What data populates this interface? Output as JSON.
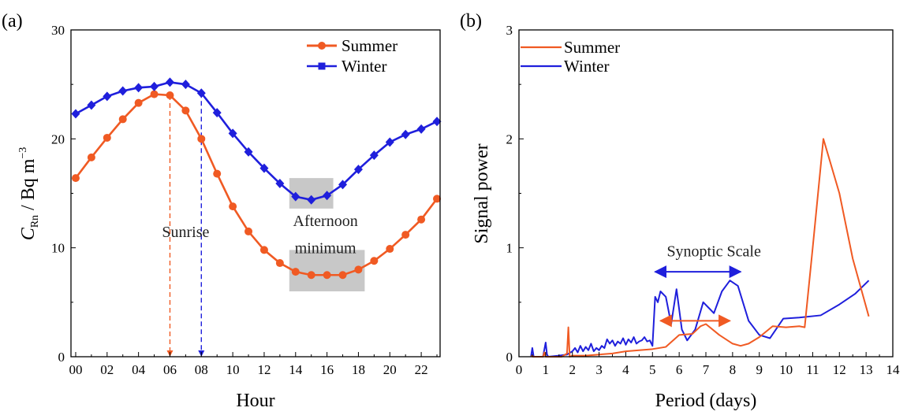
{
  "colors": {
    "summer": "#f05a23",
    "winter": "#1f1fdc",
    "shade": "#c8c8c8",
    "axis": "#000000"
  },
  "chart_data": [
    {
      "panel_label": "(a)",
      "type": "line",
      "title": "",
      "xlabel": "Hour",
      "ylabel_main": "C",
      "ylabel_sub": "Rn",
      "ylabel_rest": " / Bq m",
      "ylabel_sup": "−3",
      "xlim": [
        -0.3,
        23.2
      ],
      "ylim": [
        0,
        30
      ],
      "x_ticks": [
        0,
        2,
        4,
        6,
        8,
        10,
        12,
        14,
        16,
        18,
        20,
        22
      ],
      "x_tick_labels": [
        "00",
        "02",
        "04",
        "06",
        "08",
        "10",
        "12",
        "14",
        "16",
        "18",
        "20",
        "22"
      ],
      "y_ticks": [
        0,
        10,
        20,
        30
      ],
      "y_tick_labels": [
        "0",
        "10",
        "20",
        "30"
      ],
      "legend": "top-right",
      "grid": false,
      "x": [
        0,
        1,
        2,
        3,
        4,
        5,
        6,
        7,
        8,
        9,
        10,
        11,
        12,
        13,
        14,
        15,
        16,
        17,
        18,
        19,
        20,
        21,
        22,
        23
      ],
      "series": [
        {
          "name": "Summer",
          "color_key": "summer",
          "marker": "circle",
          "values": [
            16.4,
            18.3,
            20.1,
            21.8,
            23.3,
            24.1,
            24.0,
            22.6,
            20.0,
            16.8,
            13.8,
            11.5,
            9.8,
            8.6,
            7.8,
            7.5,
            7.5,
            7.5,
            8.0,
            8.8,
            9.9,
            11.2,
            12.6,
            14.5
          ]
        },
        {
          "name": "Winter",
          "color_key": "winter",
          "marker": "diamond",
          "values": [
            22.3,
            23.1,
            23.9,
            24.4,
            24.7,
            24.8,
            25.2,
            25.0,
            24.2,
            22.4,
            20.5,
            18.8,
            17.3,
            15.9,
            14.7,
            14.4,
            14.8,
            15.8,
            17.2,
            18.5,
            19.7,
            20.4,
            20.9,
            21.6
          ]
        }
      ],
      "annotations": [
        {
          "text": "Sunrise",
          "x": 7.0,
          "y": 11.5
        },
        {
          "text": "Afternoon",
          "x": 15.9,
          "y": 12.5
        },
        {
          "text": "minimum",
          "x": 15.9,
          "y": 10.0
        }
      ],
      "shaded_regions": [
        {
          "x": [
            13.6,
            16.4
          ],
          "y": [
            13.6,
            16.4
          ]
        },
        {
          "x": [
            13.6,
            18.4
          ],
          "y": [
            6.0,
            9.8
          ]
        }
      ],
      "vertical_markers": [
        {
          "x": 6,
          "y_top": 24.0,
          "color_key": "summer"
        },
        {
          "x": 8,
          "y_top": 24.2,
          "color_key": "winter"
        }
      ]
    },
    {
      "panel_label": "(b)",
      "type": "line",
      "title": "",
      "xlabel": "Period (days)",
      "ylabel": "Signal power",
      "xlim": [
        0,
        14
      ],
      "ylim": [
        0,
        3
      ],
      "x_ticks": [
        0,
        1,
        2,
        3,
        4,
        5,
        6,
        7,
        8,
        9,
        10,
        11,
        12,
        13,
        14
      ],
      "x_tick_labels": [
        "0",
        "1",
        "2",
        "3",
        "4",
        "5",
        "6",
        "7",
        "8",
        "9",
        "10",
        "11",
        "12",
        "13",
        "14"
      ],
      "y_ticks": [
        0,
        1,
        2,
        3
      ],
      "y_tick_labels": [
        "0",
        "1",
        "2",
        "3"
      ],
      "legend": "top-left",
      "grid": false,
      "series": [
        {
          "name": "Summer",
          "color_key": "summer",
          "x": [
            0.45,
            0.5,
            0.52,
            0.6,
            0.9,
            0.95,
            1.0,
            1.2,
            1.6,
            1.8,
            1.85,
            1.9,
            2.0,
            2.5,
            3.0,
            3.5,
            4.0,
            4.5,
            5.0,
            5.5,
            6.0,
            6.5,
            6.8,
            7.0,
            7.5,
            8.0,
            8.3,
            8.6,
            9.0,
            9.5,
            10.0,
            10.5,
            10.7,
            11.0,
            11.4,
            12.0,
            12.5,
            13.1
          ],
          "y": [
            0,
            0.01,
            0,
            0,
            0,
            0.04,
            0,
            0,
            0,
            0.03,
            0.27,
            0,
            0.01,
            0.01,
            0.02,
            0.03,
            0.05,
            0.06,
            0.07,
            0.09,
            0.2,
            0.21,
            0.28,
            0.3,
            0.2,
            0.12,
            0.1,
            0.12,
            0.18,
            0.28,
            0.27,
            0.28,
            0.27,
            1.0,
            2.0,
            1.5,
            0.9,
            0.37
          ]
        },
        {
          "name": "Winter",
          "color_key": "winter",
          "x": [
            0.45,
            0.5,
            0.55,
            0.6,
            0.9,
            1.0,
            1.05,
            1.1,
            1.5,
            1.8,
            2.0,
            2.1,
            2.2,
            2.3,
            2.4,
            2.5,
            2.6,
            2.7,
            2.8,
            2.9,
            3.0,
            3.1,
            3.2,
            3.3,
            3.4,
            3.5,
            3.6,
            3.7,
            3.8,
            3.9,
            4.0,
            4.1,
            4.2,
            4.3,
            4.4,
            4.5,
            4.6,
            4.7,
            4.8,
            4.9,
            5.0,
            5.1,
            5.2,
            5.3,
            5.5,
            5.7,
            5.9,
            6.1,
            6.3,
            6.6,
            6.9,
            7.1,
            7.3,
            7.6,
            7.9,
            8.2,
            8.6,
            9.0,
            9.4,
            9.9,
            10.5,
            11.3,
            12.0,
            12.6,
            13.1
          ],
          "y": [
            0,
            0.08,
            0,
            0,
            0,
            0.13,
            0.02,
            0,
            0.01,
            0.02,
            0.05,
            0.08,
            0.04,
            0.1,
            0.05,
            0.09,
            0.06,
            0.12,
            0.05,
            0.08,
            0.06,
            0.1,
            0.08,
            0.16,
            0.12,
            0.15,
            0.1,
            0.14,
            0.12,
            0.17,
            0.11,
            0.16,
            0.13,
            0.18,
            0.12,
            0.14,
            0.15,
            0.18,
            0.14,
            0.15,
            0.1,
            0.55,
            0.5,
            0.6,
            0.55,
            0.3,
            0.62,
            0.25,
            0.15,
            0.25,
            0.5,
            0.45,
            0.4,
            0.6,
            0.7,
            0.65,
            0.33,
            0.2,
            0.17,
            0.35,
            0.36,
            0.38,
            0.48,
            0.58,
            0.7
          ]
        }
      ],
      "annotations": [
        {
          "text": "Synoptic Scale",
          "x": 7.3,
          "y": 0.92
        }
      ],
      "range_arrows": [
        {
          "x1": 5.1,
          "x2": 8.3,
          "y": 0.78,
          "color_key": "winter"
        },
        {
          "x1": 5.3,
          "x2": 7.9,
          "y": 0.33,
          "color_key": "summer"
        }
      ]
    }
  ]
}
